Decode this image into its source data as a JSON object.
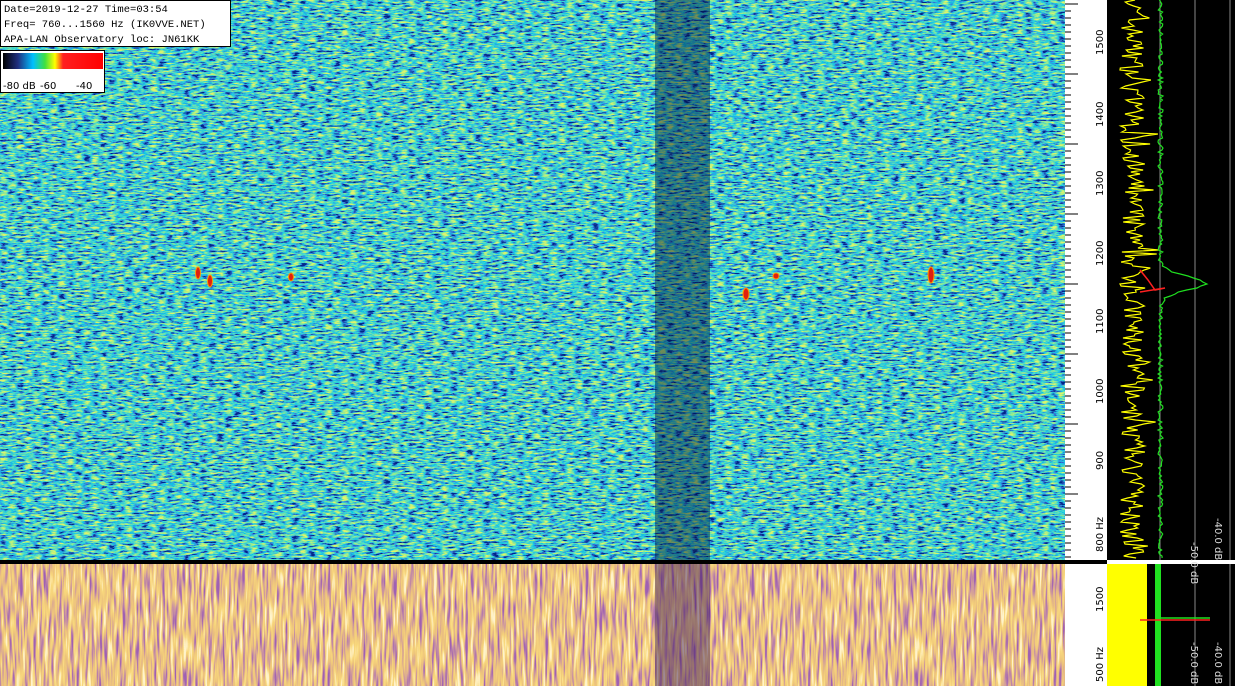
{
  "info": {
    "lines": [
      "Date=2019-12-27 Time=03:54",
      "Freq= 760...1560 Hz (IK0VVE.NET)",
      "APA-LAN Observatory loc: JN61KK"
    ]
  },
  "colorbar": {
    "labels": [
      "-80 dB",
      "-60",
      "-40"
    ]
  },
  "top_axis": {
    "labels": [
      "1500",
      "1400",
      "1300",
      "1200",
      "1100",
      "1000",
      "900",
      "800 Hz"
    ]
  },
  "bottom_axis": {
    "labels": [
      "1500",
      "500 Hz"
    ]
  },
  "top_spectrum": {
    "labels": [
      "-50.0 dB",
      "-40.0 dB"
    ]
  },
  "bottom_spectrum": {
    "labels": [
      "-50.0 dB",
      "-40.0 dB"
    ]
  }
}
